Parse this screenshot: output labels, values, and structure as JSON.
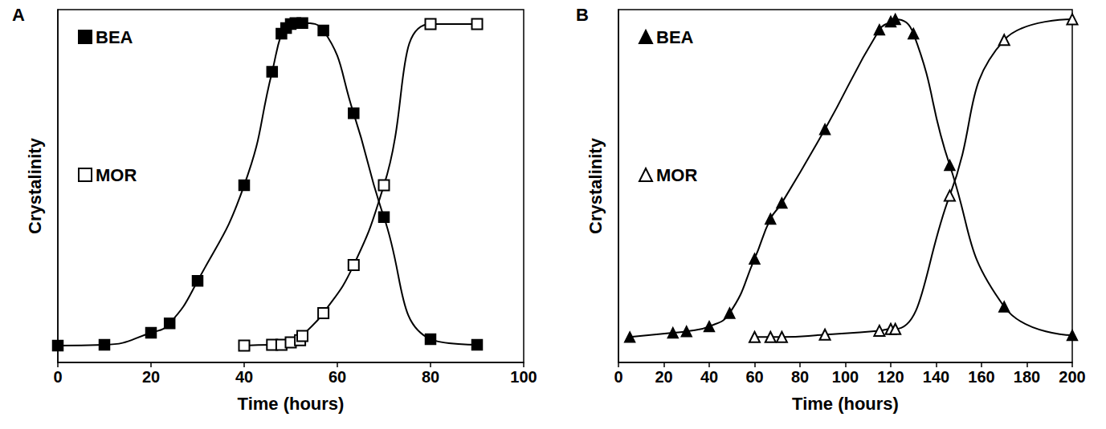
{
  "chart_data": [
    {
      "type": "line",
      "title": "A",
      "x_label": "Time (hours)",
      "y_label": "Crystalinity",
      "xlim": [
        0,
        100
      ],
      "xticks": [
        0,
        20,
        40,
        60,
        80,
        100
      ],
      "ylim": [
        0,
        100
      ],
      "tick_labels": "x",
      "grid": false,
      "legend": "upper left",
      "series": [
        {
          "name": "BEA",
          "color": "#000000",
          "marker": "square",
          "line_style": "solid",
          "x": [
            0,
            10,
            20,
            24,
            30,
            40,
            46,
            48,
            49,
            50,
            51,
            52.5,
            57,
            63.5,
            70,
            80,
            90
          ],
          "values": [
            4.8,
            5.0,
            8.4,
            11.1,
            23.1,
            50.2,
            82.4,
            93.2,
            94.8,
            95.9,
            96.2,
            96.2,
            94.1,
            70.6,
            41.2,
            6.6,
            5.0
          ]
        },
        {
          "name": "MOR",
          "color": "#000000",
          "marker": "square_open",
          "line_style": "solid",
          "x": [
            40,
            46,
            48,
            50,
            52,
            52.5,
            57,
            63.5,
            70,
            80,
            90
          ],
          "values": [
            4.8,
            5.0,
            5.0,
            5.7,
            6.3,
            7.5,
            14.0,
            27.6,
            50.2,
            95.9,
            95.9
          ]
        }
      ]
    },
    {
      "type": "line",
      "title": "B",
      "x_label": "Time (hours)",
      "y_label": "Crystalinity",
      "xlim": [
        0,
        200
      ],
      "xticks": [
        0,
        20,
        40,
        60,
        80,
        100,
        120,
        140,
        160,
        180,
        200
      ],
      "ylim": [
        0,
        100
      ],
      "tick_labels": "x",
      "grid": false,
      "legend": "upper left",
      "series": [
        {
          "name": "BEA",
          "color": "#000000",
          "marker": "triangle",
          "line_style": "solid",
          "x": [
            5,
            24,
            30,
            40,
            49,
            60,
            67,
            72,
            91,
            115,
            120,
            122,
            130,
            146,
            170,
            200
          ],
          "values": [
            7.2,
            8.4,
            8.8,
            10.2,
            14.0,
            29.4,
            40.7,
            45.2,
            66.1,
            94.3,
            96.6,
            97.3,
            93.2,
            55.9,
            15.8,
            7.7
          ]
        },
        {
          "name": "MOR",
          "color": "#000000",
          "marker": "triangle_open",
          "line_style": "solid",
          "x": [
            60,
            67,
            72,
            91,
            115,
            120,
            122,
            146,
            170,
            200
          ],
          "values": [
            7.2,
            7.2,
            7.2,
            7.9,
            9.0,
            9.5,
            9.5,
            47.3,
            91.4,
            97.3
          ]
        }
      ]
    }
  ]
}
